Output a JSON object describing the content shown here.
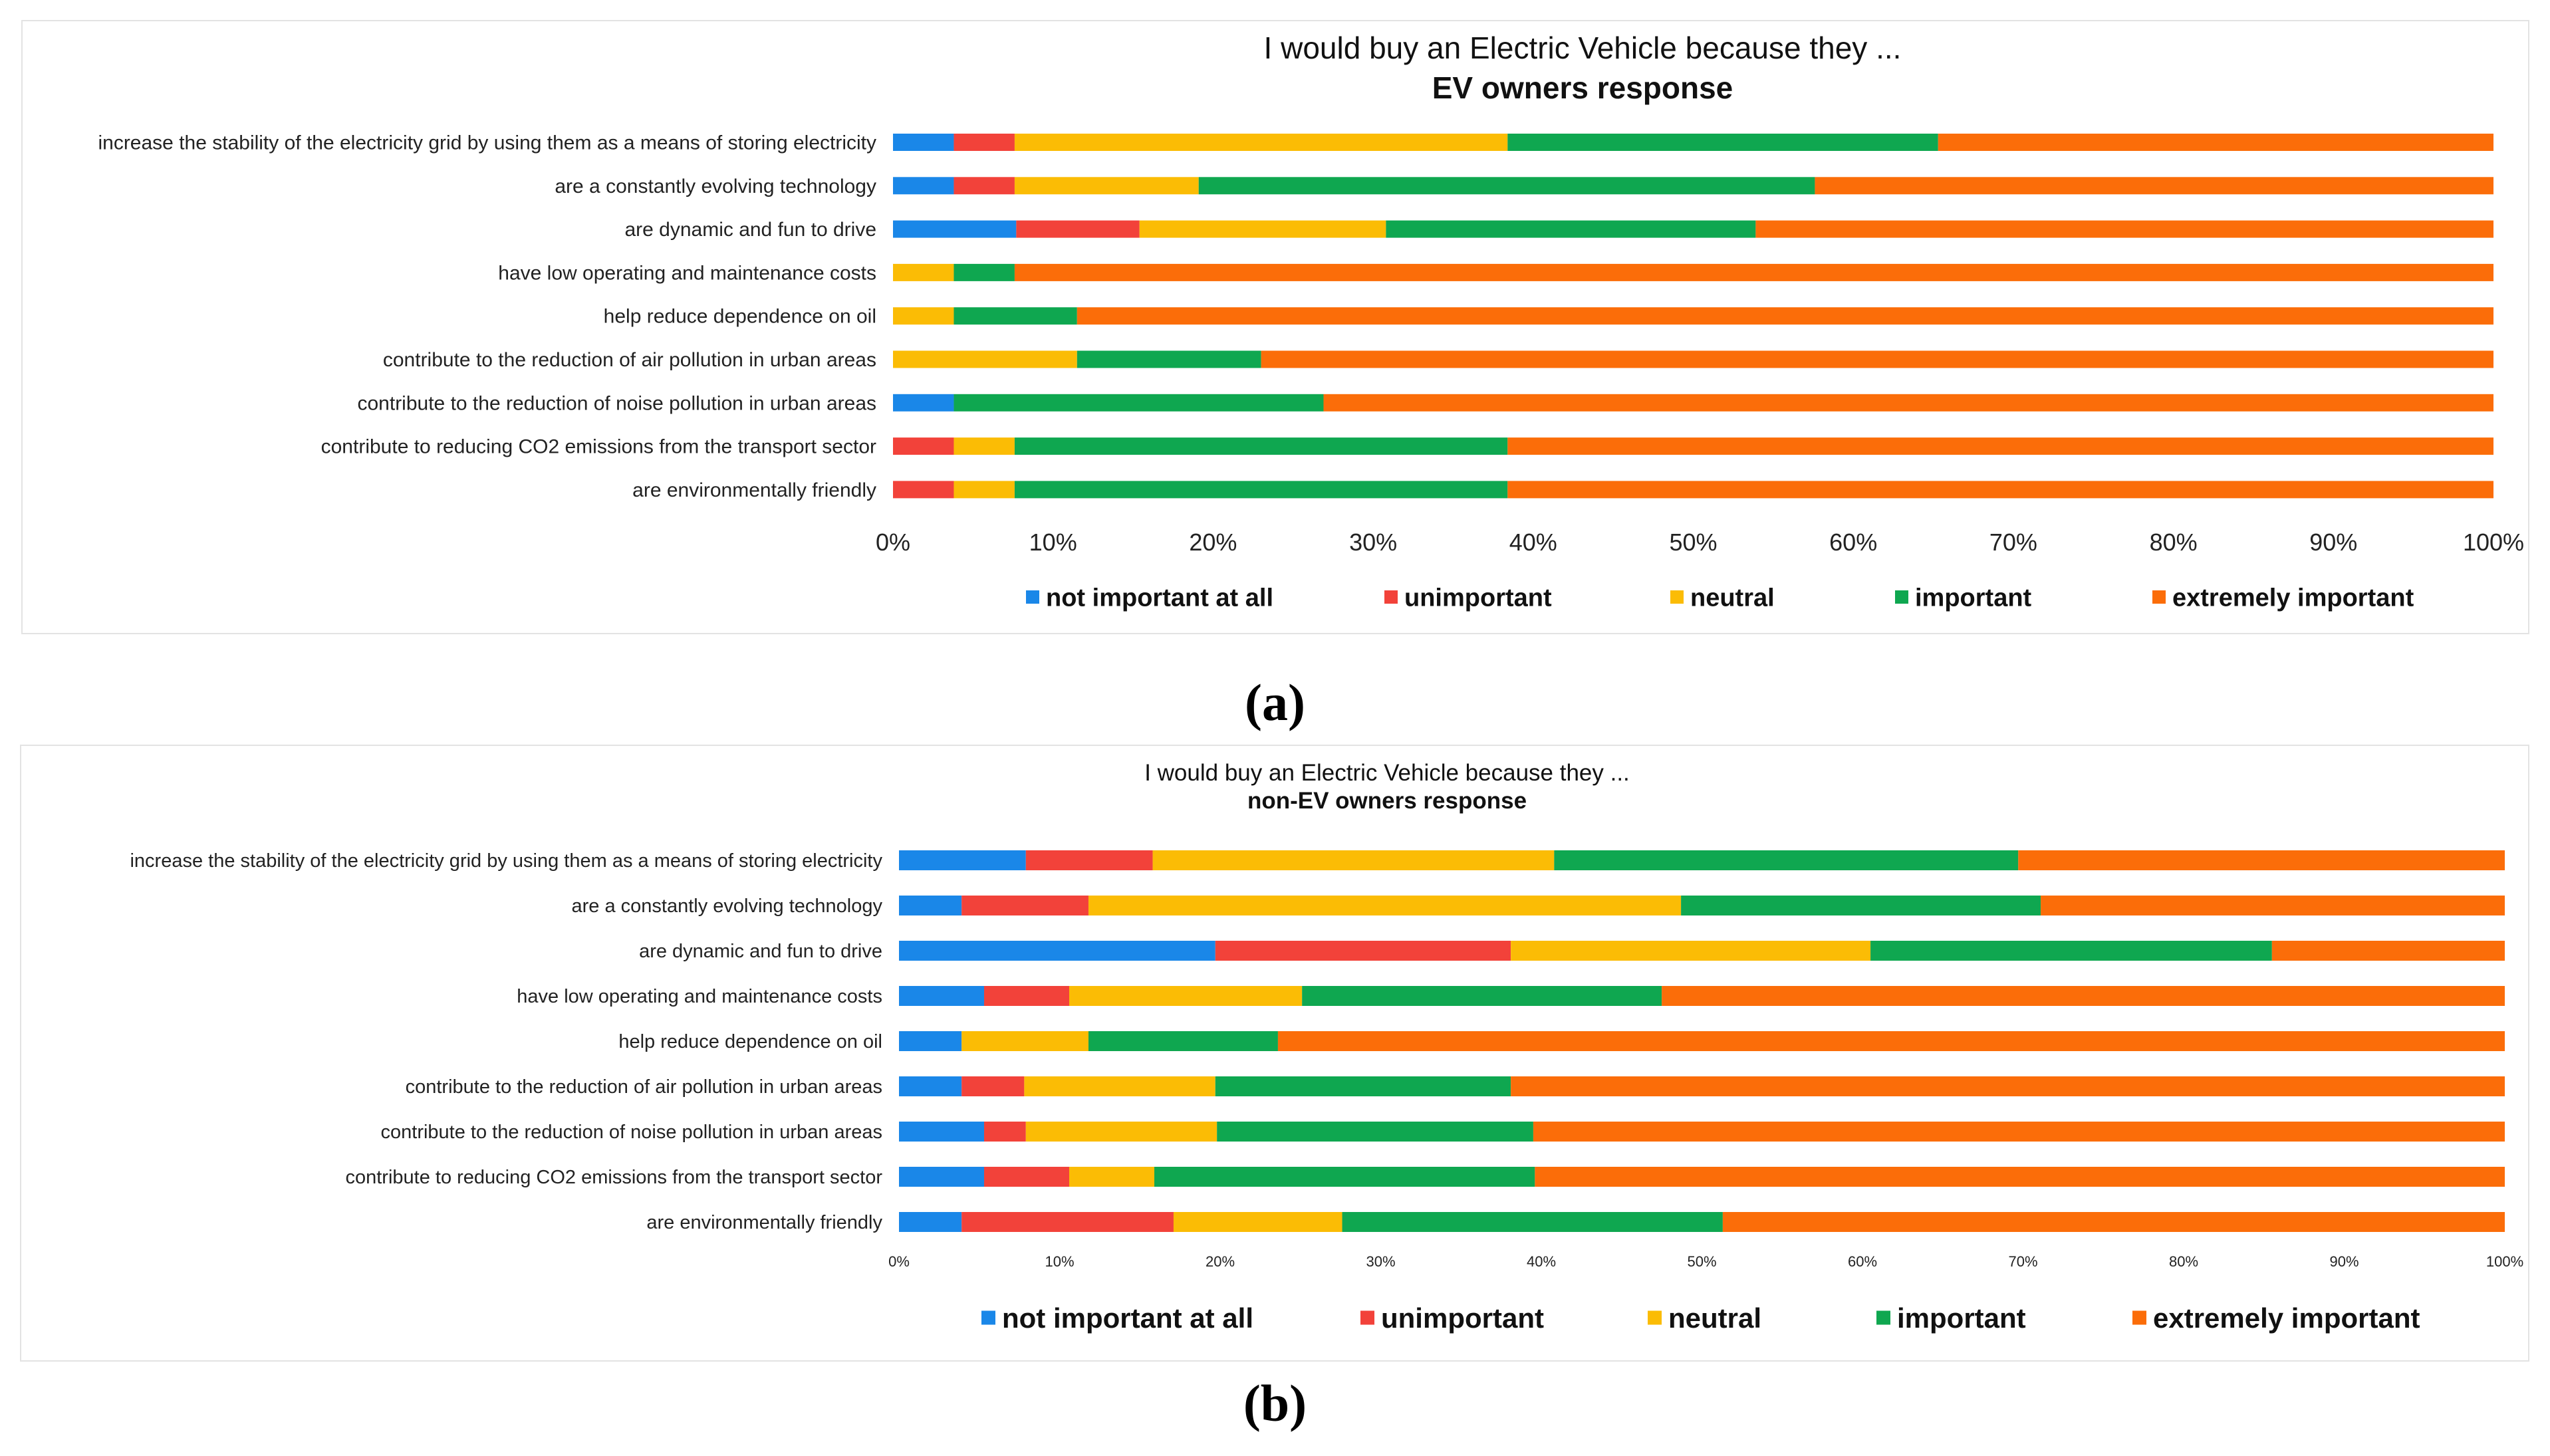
{
  "chart_data": [
    {
      "type": "bar",
      "stacked": true,
      "orientation": "horizontal",
      "title": "I would buy an Electric Vehicle because they ...",
      "subtitle": "EV owners response",
      "xlim": [
        0,
        100
      ],
      "xticks": [
        "0%",
        "10%",
        "20%",
        "30%",
        "40%",
        "50%",
        "60%",
        "70%",
        "80%",
        "90%",
        "100%"
      ],
      "legend_position": "bottom",
      "categories": [
        "increase the stability of the electricity grid by using them as a means of storing electricity",
        "are a constantly evolving technology",
        "are dynamic and fun to drive",
        "have low operating and maintenance costs",
        "help reduce dependence on oil",
        "contribute to the reduction of air pollution in urban areas",
        "contribute to the reduction of noise pollution in urban areas",
        "contribute to reducing  CO2 emissions from the transport sector",
        "are environmentally friendly"
      ],
      "series": [
        {
          "name": "not important at all",
          "color": "#1a87e8",
          "values": [
            3.8,
            3.8,
            7.7,
            0,
            0,
            0,
            3.8,
            0,
            0
          ]
        },
        {
          "name": "unimportant",
          "color": "#f2423a",
          "values": [
            3.8,
            3.8,
            7.7,
            0,
            0,
            0,
            0,
            3.8,
            3.8
          ]
        },
        {
          "name": "neutral",
          "color": "#fbbc05",
          "values": [
            30.8,
            11.5,
            15.4,
            3.8,
            3.8,
            11.5,
            0,
            3.8,
            3.8
          ]
        },
        {
          "name": "important",
          "color": "#0fa750",
          "values": [
            26.9,
            38.5,
            23.1,
            3.8,
            7.7,
            11.5,
            23.1,
            30.8,
            30.8
          ]
        },
        {
          "name": "extremely important",
          "color": "#fb6d09",
          "values": [
            34.7,
            42.4,
            46.1,
            92.4,
            88.5,
            77.0,
            73.1,
            61.6,
            61.6
          ]
        }
      ]
    },
    {
      "type": "bar",
      "stacked": true,
      "orientation": "horizontal",
      "title": "I would buy an Electric Vehicle because they ...",
      "subtitle": "non-EV owners response",
      "xlim": [
        0,
        100
      ],
      "xticks": [
        "0%",
        "10%",
        "20%",
        "30%",
        "40%",
        "50%",
        "60%",
        "70%",
        "80%",
        "90%",
        "100%"
      ],
      "legend_position": "bottom",
      "categories": [
        "increase the stability of the electricity grid by using them as a means of storing electricity",
        "are a constantly evolving technology",
        "are dynamic and fun to drive",
        "have low operating and maintenance costs",
        "help reduce dependence on oil",
        "contribute to the reduction of air pollution in urban areas",
        "contribute to the reduction of noise pollution in urban areas",
        "contribute to reducing  CO2 emissions from the transport sector",
        "are environmentally friendly"
      ],
      "series": [
        {
          "name": "not important at all",
          "color": "#1a87e8",
          "values": [
            7.9,
            3.9,
            19.7,
            5.3,
            3.9,
            3.9,
            5.3,
            5.3,
            3.9
          ]
        },
        {
          "name": "unimportant",
          "color": "#f2423a",
          "values": [
            7.9,
            7.9,
            18.4,
            5.3,
            0,
            3.9,
            2.6,
            5.3,
            13.2
          ]
        },
        {
          "name": "neutral",
          "color": "#fbbc05",
          "values": [
            25.0,
            36.9,
            22.4,
            14.5,
            7.9,
            11.9,
            11.9,
            5.3,
            10.5
          ]
        },
        {
          "name": "important",
          "color": "#0fa750",
          "values": [
            28.9,
            22.4,
            25.0,
            22.4,
            11.8,
            18.4,
            19.7,
            23.7,
            23.7
          ]
        },
        {
          "name": "extremely important",
          "color": "#fb6d09",
          "values": [
            30.3,
            28.9,
            14.5,
            52.5,
            76.4,
            61.9,
            60.5,
            60.4,
            48.7
          ]
        }
      ]
    }
  ],
  "captions": {
    "a": "(a)",
    "b": "(b)"
  }
}
